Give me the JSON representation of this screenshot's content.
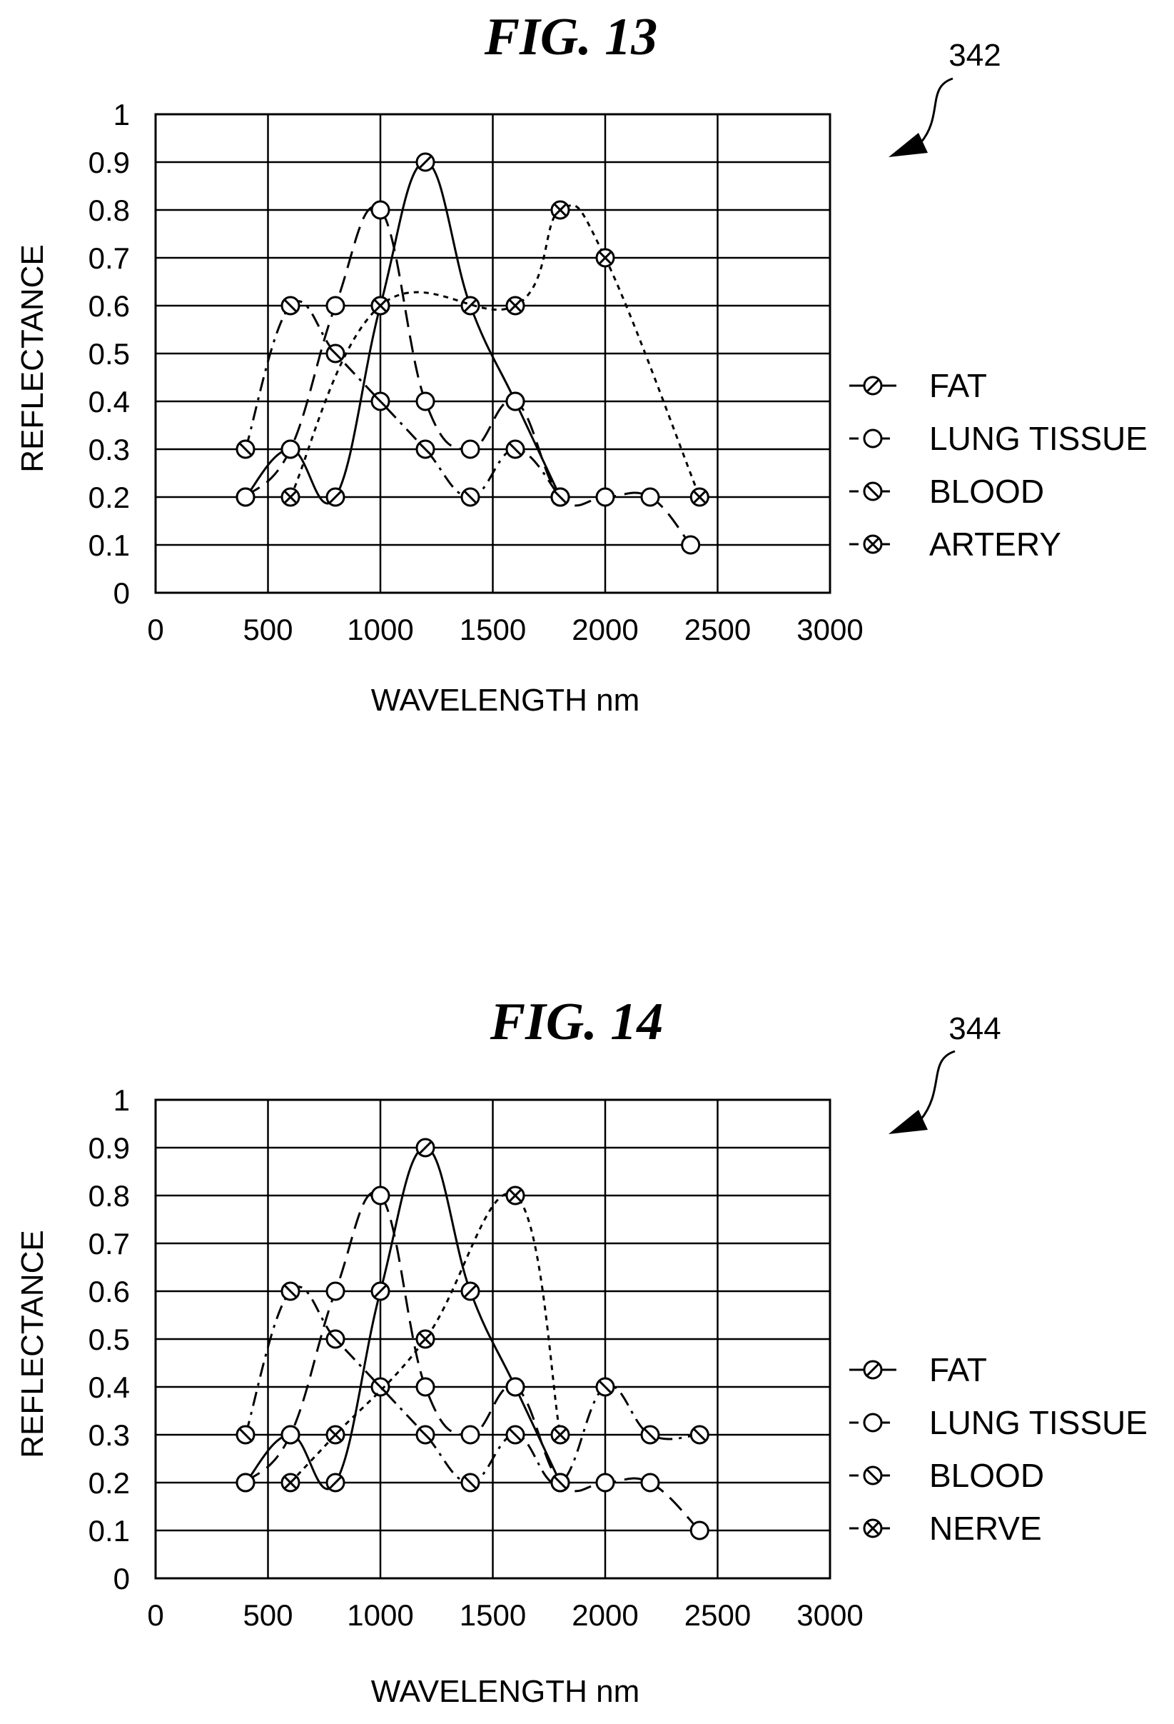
{
  "charts": [
    {
      "figure_title": "FIG. 13",
      "reference_number": "342",
      "ylabel": "REFLECTANCE",
      "xlabel": "WAVELENGTH nm"
    },
    {
      "figure_title": "FIG. 14",
      "reference_number": "344",
      "ylabel": "REFLECTANCE",
      "xlabel": "WAVELENGTH nm"
    }
  ],
  "chart_data": [
    {
      "type": "line",
      "title": "FIG. 13",
      "xlabel": "WAVELENGTH nm",
      "ylabel": "REFLECTANCE",
      "xlim": [
        0,
        3000
      ],
      "ylim": [
        0,
        1
      ],
      "x_ticks": [
        "0",
        "500",
        "1000",
        "1500",
        "2000",
        "2500",
        "3000"
      ],
      "y_ticks": [
        "0",
        "0.1",
        "0.2",
        "0.3",
        "0.4",
        "0.5",
        "0.6",
        "0.7",
        "0.8",
        "0.9",
        "1"
      ],
      "grid": true,
      "legend_position": "right",
      "series": [
        {
          "name": "FAT",
          "marker": "slash",
          "line": "solid",
          "x": [
            400,
            600,
            800,
            1000,
            1200,
            1400,
            1600,
            1800
          ],
          "y": [
            0.2,
            0.3,
            0.2,
            0.6,
            0.9,
            0.6,
            0.4,
            0.2
          ]
        },
        {
          "name": "LUNG TISSUE",
          "marker": "open",
          "line": "dashed",
          "x": [
            400,
            600,
            800,
            1000,
            1200,
            1400,
            1600,
            1800,
            2000,
            2200,
            2380
          ],
          "y": [
            0.2,
            0.3,
            0.6,
            0.8,
            0.4,
            0.3,
            0.4,
            0.2,
            0.2,
            0.2,
            0.1
          ]
        },
        {
          "name": "BLOOD",
          "marker": "backslash",
          "line": "dashdot",
          "x": [
            400,
            600,
            800,
            1000,
            1200,
            1400,
            1600,
            1800
          ],
          "y": [
            0.3,
            0.6,
            0.5,
            0.4,
            0.3,
            0.2,
            0.3,
            0.2
          ]
        },
        {
          "name": "ARTERY",
          "marker": "cross",
          "line": "dotted",
          "x": [
            600,
            1000,
            1600,
            1800,
            2000,
            2420
          ],
          "y": [
            0.2,
            0.6,
            0.6,
            0.8,
            0.7,
            0.2
          ]
        }
      ]
    },
    {
      "type": "line",
      "title": "FIG. 14",
      "xlabel": "WAVELENGTH nm",
      "ylabel": "REFLECTANCE",
      "xlim": [
        0,
        3000
      ],
      "ylim": [
        0,
        1
      ],
      "x_ticks": [
        "0",
        "500",
        "1000",
        "1500",
        "2000",
        "2500",
        "3000"
      ],
      "y_ticks": [
        "0",
        "0.1",
        "0.2",
        "0.3",
        "0.4",
        "0.5",
        "0.6",
        "0.7",
        "0.8",
        "0.9",
        "1"
      ],
      "grid": true,
      "legend_position": "right",
      "series": [
        {
          "name": "FAT",
          "marker": "slash",
          "line": "solid",
          "x": [
            400,
            600,
            800,
            1000,
            1200,
            1400,
            1600,
            1800
          ],
          "y": [
            0.2,
            0.3,
            0.2,
            0.6,
            0.9,
            0.6,
            0.4,
            0.2
          ]
        },
        {
          "name": "LUNG TISSUE",
          "marker": "open",
          "line": "dashed",
          "x": [
            400,
            600,
            800,
            1000,
            1200,
            1400,
            1600,
            1800,
            2000,
            2200,
            2420
          ],
          "y": [
            0.2,
            0.3,
            0.6,
            0.8,
            0.4,
            0.3,
            0.4,
            0.2,
            0.2,
            0.2,
            0.1
          ]
        },
        {
          "name": "BLOOD",
          "marker": "backslash",
          "line": "dashdot",
          "x": [
            400,
            600,
            800,
            1000,
            1200,
            1400,
            1600,
            1800,
            2000,
            2200,
            2420
          ],
          "y": [
            0.3,
            0.6,
            0.5,
            0.4,
            0.3,
            0.2,
            0.3,
            0.2,
            0.4,
            0.3,
            0.3
          ]
        },
        {
          "name": "NERVE",
          "marker": "cross",
          "line": "dotted",
          "x": [
            600,
            800,
            1200,
            1600,
            1800
          ],
          "y": [
            0.2,
            0.3,
            0.5,
            0.8,
            0.3
          ]
        }
      ]
    }
  ]
}
